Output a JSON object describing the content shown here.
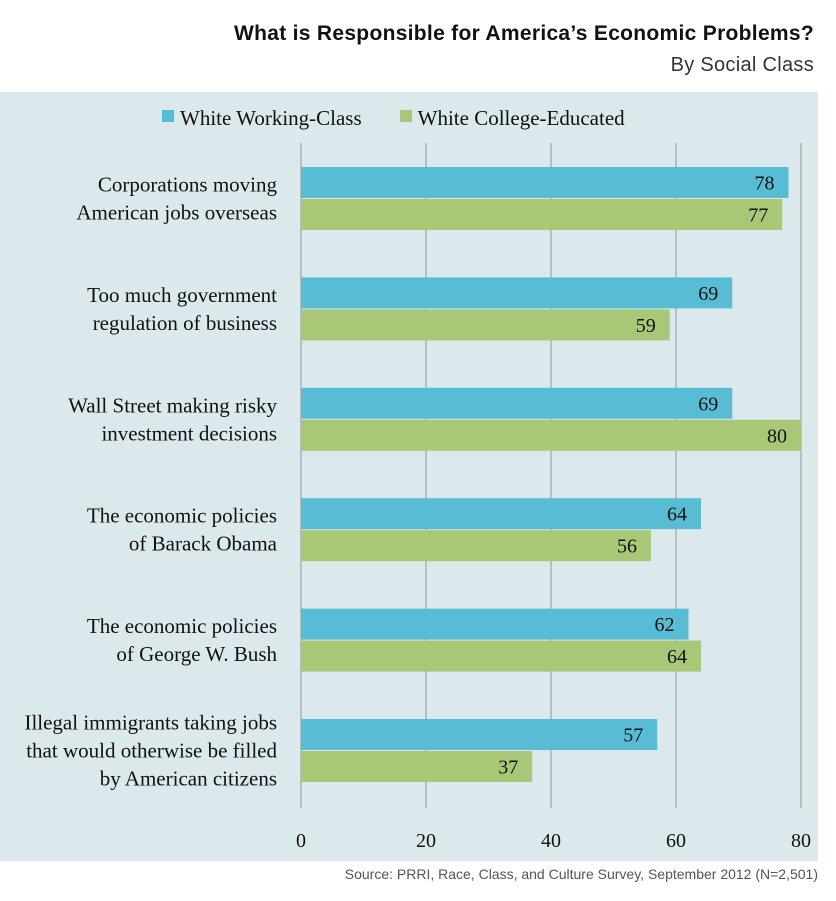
{
  "title": "What is Responsible for America’s Economic Problems?",
  "subtitle": "By Social Class",
  "source": "Source: PRRI, Race, Class, and Culture Survey, September 2012 (N=2,501)",
  "colors": {
    "working": "#58bdd4",
    "college": "#a8c777",
    "grid": "#b9bfc1",
    "panel": "#dce9ec"
  },
  "chart_data": {
    "type": "bar",
    "orientation": "horizontal",
    "categories": [
      [
        "Corporations moving",
        "American jobs overseas"
      ],
      [
        "Too much government",
        "regulation of business"
      ],
      [
        "Wall Street making risky",
        "investment decisions"
      ],
      [
        "The economic policies",
        "of Barack Obama"
      ],
      [
        "The economic policies",
        "of George W. Bush"
      ],
      [
        "Illegal immigrants taking jobs",
        "that would otherwise be filled",
        "by American citizens"
      ]
    ],
    "series": [
      {
        "name": "White Working-Class",
        "values": [
          78,
          69,
          69,
          64,
          62,
          57
        ]
      },
      {
        "name": "White College-Educated",
        "values": [
          77,
          59,
          80,
          56,
          64,
          37
        ]
      }
    ],
    "xlim": [
      0,
      80
    ],
    "xticks": [
      "0",
      "20",
      "40",
      "60",
      "80"
    ],
    "grid": true,
    "legend_position": "top"
  }
}
